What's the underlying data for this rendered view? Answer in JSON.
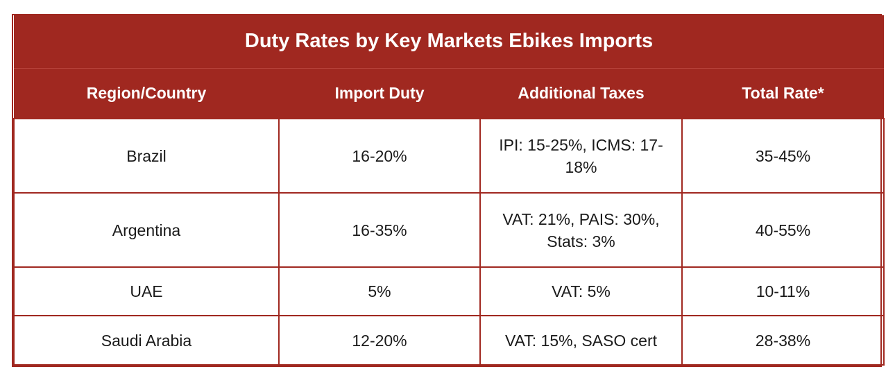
{
  "table": {
    "title": "Duty Rates by Key Markets  Ebikes Imports",
    "columns": [
      "Region/Country",
      "Import Duty",
      "Additional Taxes",
      "Total Rate*"
    ],
    "rows": [
      {
        "region": "Brazil",
        "import_duty": "16-20%",
        "additional_taxes": "IPI: 15-25%, ICMS: 17-18%",
        "total_rate": "35-45%"
      },
      {
        "region": "Argentina",
        "import_duty": "16-35%",
        "additional_taxes": "VAT: 21%, PAIS: 30%, Stats: 3%",
        "total_rate": "40-55%"
      },
      {
        "region": "UAE",
        "import_duty": "5%",
        "additional_taxes": "VAT: 5%",
        "total_rate": "10-11%"
      },
      {
        "region": "Saudi Arabia",
        "import_duty": "12-20%",
        "additional_taxes": "VAT: 15%, SASO cert",
        "total_rate": "28-38%"
      }
    ]
  },
  "colors": {
    "header_background": "#a02820",
    "header_text": "#ffffff",
    "border": "#a02820",
    "cell_text": "#1a1a1a"
  }
}
